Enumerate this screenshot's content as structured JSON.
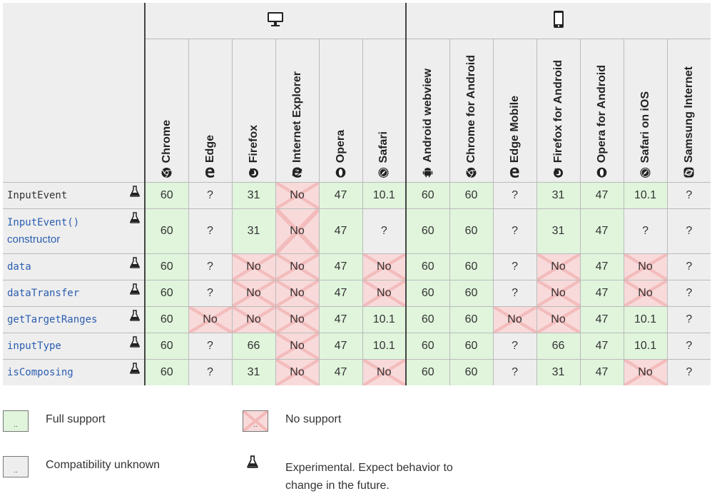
{
  "platforms": {
    "desktop_icon": "desktop-monitor-icon",
    "mobile_icon": "mobile-phone-icon"
  },
  "browsers": [
    {
      "name": "Chrome",
      "icon": "chrome-icon"
    },
    {
      "name": "Edge",
      "icon": "edge-icon"
    },
    {
      "name": "Firefox",
      "icon": "firefox-icon"
    },
    {
      "name": "Internet Explorer",
      "icon": "ie-icon"
    },
    {
      "name": "Opera",
      "icon": "opera-icon"
    },
    {
      "name": "Safari",
      "icon": "safari-icon"
    },
    {
      "name": "Android webview",
      "icon": "android-icon"
    },
    {
      "name": "Chrome for Android",
      "icon": "chrome-icon"
    },
    {
      "name": "Edge Mobile",
      "icon": "edge-icon"
    },
    {
      "name": "Firefox for Android",
      "icon": "firefox-icon"
    },
    {
      "name": "Opera for Android",
      "icon": "opera-icon"
    },
    {
      "name": "Safari on iOS",
      "icon": "safari-icon"
    },
    {
      "name": "Samsung Internet",
      "icon": "samsung-icon"
    }
  ],
  "features": [
    {
      "name": "InputEvent",
      "style": "plain",
      "experimental": true,
      "support": [
        [
          "y",
          "60"
        ],
        [
          "u",
          "?"
        ],
        [
          "y",
          "31"
        ],
        [
          "n",
          "No"
        ],
        [
          "y",
          "47"
        ],
        [
          "y",
          "10.1"
        ],
        [
          "y",
          "60"
        ],
        [
          "y",
          "60"
        ],
        [
          "u",
          "?"
        ],
        [
          "y",
          "31"
        ],
        [
          "y",
          "47"
        ],
        [
          "y",
          "10.1"
        ],
        [
          "u",
          "?"
        ]
      ]
    },
    {
      "name": "InputEvent()",
      "name2": "constructor",
      "style": "link",
      "experimental": true,
      "tall": true,
      "support": [
        [
          "y",
          "60"
        ],
        [
          "u",
          "?"
        ],
        [
          "y",
          "31"
        ],
        [
          "n",
          "No"
        ],
        [
          "y",
          "47"
        ],
        [
          "u",
          "?"
        ],
        [
          "y",
          "60"
        ],
        [
          "y",
          "60"
        ],
        [
          "u",
          "?"
        ],
        [
          "y",
          "31"
        ],
        [
          "y",
          "47"
        ],
        [
          "u",
          "?"
        ],
        [
          "u",
          "?"
        ]
      ]
    },
    {
      "name": "data",
      "style": "link",
      "experimental": true,
      "support": [
        [
          "y",
          "60"
        ],
        [
          "u",
          "?"
        ],
        [
          "n",
          "No"
        ],
        [
          "n",
          "No"
        ],
        [
          "y",
          "47"
        ],
        [
          "n",
          "No"
        ],
        [
          "y",
          "60"
        ],
        [
          "y",
          "60"
        ],
        [
          "u",
          "?"
        ],
        [
          "n",
          "No"
        ],
        [
          "y",
          "47"
        ],
        [
          "n",
          "No"
        ],
        [
          "u",
          "?"
        ]
      ]
    },
    {
      "name": "dataTransfer",
      "style": "link",
      "experimental": true,
      "support": [
        [
          "y",
          "60"
        ],
        [
          "u",
          "?"
        ],
        [
          "n",
          "No"
        ],
        [
          "n",
          "No"
        ],
        [
          "y",
          "47"
        ],
        [
          "n",
          "No"
        ],
        [
          "y",
          "60"
        ],
        [
          "y",
          "60"
        ],
        [
          "u",
          "?"
        ],
        [
          "n",
          "No"
        ],
        [
          "y",
          "47"
        ],
        [
          "n",
          "No"
        ],
        [
          "u",
          "?"
        ]
      ]
    },
    {
      "name": "getTargetRanges",
      "style": "link",
      "experimental": true,
      "support": [
        [
          "y",
          "60"
        ],
        [
          "n",
          "No"
        ],
        [
          "n",
          "No"
        ],
        [
          "n",
          "No"
        ],
        [
          "y",
          "47"
        ],
        [
          "y",
          "10.1"
        ],
        [
          "y",
          "60"
        ],
        [
          "y",
          "60"
        ],
        [
          "n",
          "No"
        ],
        [
          "n",
          "No"
        ],
        [
          "y",
          "47"
        ],
        [
          "y",
          "10.1"
        ],
        [
          "u",
          "?"
        ]
      ]
    },
    {
      "name": "inputType",
      "style": "link",
      "experimental": true,
      "support": [
        [
          "y",
          "60"
        ],
        [
          "u",
          "?"
        ],
        [
          "y",
          "66"
        ],
        [
          "n",
          "No"
        ],
        [
          "y",
          "47"
        ],
        [
          "y",
          "10.1"
        ],
        [
          "y",
          "60"
        ],
        [
          "y",
          "60"
        ],
        [
          "u",
          "?"
        ],
        [
          "y",
          "66"
        ],
        [
          "y",
          "47"
        ],
        [
          "y",
          "10.1"
        ],
        [
          "u",
          "?"
        ]
      ]
    },
    {
      "name": "isComposing",
      "style": "link",
      "experimental": true,
      "support": [
        [
          "y",
          "60"
        ],
        [
          "u",
          "?"
        ],
        [
          "y",
          "31"
        ],
        [
          "n",
          "No"
        ],
        [
          "y",
          "47"
        ],
        [
          "n",
          "No"
        ],
        [
          "y",
          "60"
        ],
        [
          "y",
          "60"
        ],
        [
          "u",
          "?"
        ],
        [
          "y",
          "31"
        ],
        [
          "y",
          "47"
        ],
        [
          "n",
          "No"
        ],
        [
          "u",
          "?"
        ]
      ]
    }
  ],
  "legend": {
    "full_support": "Full support",
    "no_support": "No support",
    "unknown": "Compatibility unknown",
    "experimental_line1": "Experimental. Expect behavior to",
    "experimental_line2": "change in the future.",
    "swatch_mark": ".."
  },
  "colors": {
    "yes": "#e0f5dc",
    "no": "#f8dada",
    "unknown": "#eeeeee",
    "link": "#2a5db0"
  }
}
